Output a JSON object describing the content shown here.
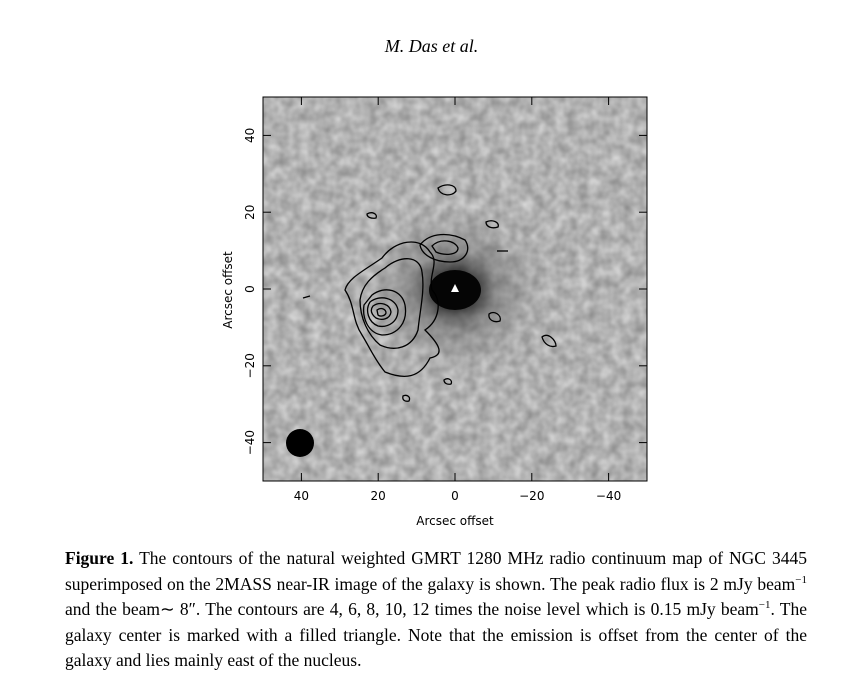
{
  "header": {
    "running_head": "M. Das et al."
  },
  "chart_data": {
    "type": "image",
    "xlabel": "Arcsec offset",
    "ylabel": "Arcsec offset",
    "xlim": [
      50,
      -50
    ],
    "ylim": [
      -50,
      50
    ],
    "xticks": [
      40,
      20,
      0,
      {
        "value": -20,
        "label": "−20"
      },
      {
        "value": -40,
        "label": "−40"
      }
    ],
    "yticks": [
      {
        "value": -40,
        "label": "−40"
      },
      {
        "value": -20,
        "label": "−20"
      },
      0,
      20,
      40
    ]
  },
  "caption": {
    "label": "Figure 1.",
    "parts": [
      " The contours of the natural weighted GMRT 1280 MHz radio continuum map of NGC 3445 superimposed on the 2MASS near-IR image of the galaxy is shown. The peak radio flux is 2 mJy beam",
      "−1",
      " and the beam∼ 8″. The contours are 4, 6, 8, 10, 12 times the noise level which is 0.15 mJy beam",
      "−1",
      ". The galaxy center is marked with a filled triangle. Note that the emission is offset from the center of the galaxy and lies mainly east of the nucleus."
    ]
  }
}
